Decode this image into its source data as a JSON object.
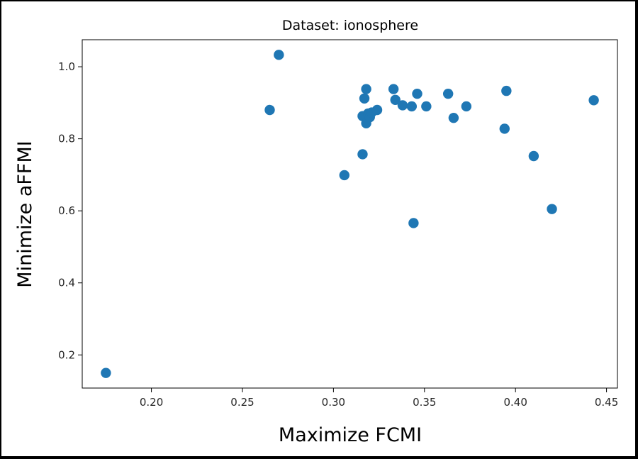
{
  "chart_data": {
    "type": "scatter",
    "title": "Dataset: ionosphere",
    "xlabel": "Maximize FCMI",
    "ylabel": "Minimize aFFMI",
    "xlim": [
      0.162,
      0.456
    ],
    "ylim": [
      0.108,
      1.075
    ],
    "xticks": [
      0.2,
      0.25,
      0.3,
      0.35,
      0.4,
      0.45
    ],
    "xtick_labels": [
      "0.20",
      "0.25",
      "0.30",
      "0.35",
      "0.40",
      "0.45"
    ],
    "yticks": [
      0.2,
      0.4,
      0.6,
      0.8,
      1.0
    ],
    "ytick_labels": [
      "0.2",
      "0.4",
      "0.6",
      "0.8",
      "1.0"
    ],
    "grid": false,
    "marker_color": "#1f77b4",
    "points": [
      {
        "x": 0.175,
        "y": 0.15
      },
      {
        "x": 0.265,
        "y": 0.88
      },
      {
        "x": 0.27,
        "y": 1.033
      },
      {
        "x": 0.306,
        "y": 0.699
      },
      {
        "x": 0.316,
        "y": 0.757
      },
      {
        "x": 0.316,
        "y": 0.863
      },
      {
        "x": 0.317,
        "y": 0.912
      },
      {
        "x": 0.318,
        "y": 0.938
      },
      {
        "x": 0.318,
        "y": 0.843
      },
      {
        "x": 0.319,
        "y": 0.87
      },
      {
        "x": 0.32,
        "y": 0.86
      },
      {
        "x": 0.321,
        "y": 0.873
      },
      {
        "x": 0.324,
        "y": 0.88
      },
      {
        "x": 0.333,
        "y": 0.938
      },
      {
        "x": 0.334,
        "y": 0.908
      },
      {
        "x": 0.338,
        "y": 0.893
      },
      {
        "x": 0.343,
        "y": 0.89
      },
      {
        "x": 0.344,
        "y": 0.566
      },
      {
        "x": 0.346,
        "y": 0.925
      },
      {
        "x": 0.351,
        "y": 0.89
      },
      {
        "x": 0.363,
        "y": 0.925
      },
      {
        "x": 0.366,
        "y": 0.858
      },
      {
        "x": 0.373,
        "y": 0.89
      },
      {
        "x": 0.394,
        "y": 0.828
      },
      {
        "x": 0.395,
        "y": 0.933
      },
      {
        "x": 0.41,
        "y": 0.752
      },
      {
        "x": 0.42,
        "y": 0.605
      },
      {
        "x": 0.443,
        "y": 0.907
      }
    ]
  }
}
